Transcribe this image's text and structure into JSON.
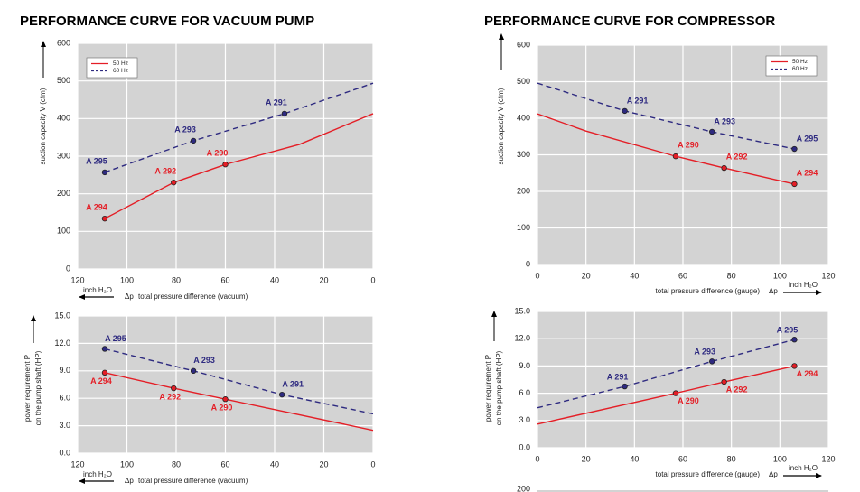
{
  "chart_data": [
    {
      "type": "line",
      "title": "PERFORMANCE CURVE FOR VACUUM PUMP",
      "y_label": [
        "suction capacity V (cfm)"
      ],
      "x_label": "total pressure difference (vacuum)",
      "x_symbol": "Δp",
      "x_unit": "inch H₂O",
      "xlim": [
        120,
        0
      ],
      "xticks": [
        120,
        100,
        80,
        60,
        40,
        20,
        0
      ],
      "ylim": [
        0,
        600
      ],
      "yticks": [
        0,
        100,
        200,
        300,
        400,
        500,
        600
      ],
      "grid": true,
      "legend": "upper left",
      "series": [
        {
          "name": "50 Hz",
          "color": "#e41e26",
          "dash": false,
          "x": [
            109,
            95,
            81,
            60,
            30,
            0
          ],
          "values": [
            134,
            182,
            230,
            278,
            331,
            413
          ],
          "points": [
            {
              "label": "A 294",
              "x": 109,
              "y": 134
            },
            {
              "label": "A 292",
              "x": 81,
              "y": 230
            },
            {
              "label": "A 290",
              "x": 60,
              "y": 278
            }
          ]
        },
        {
          "name": "60 Hz",
          "color": "#2e2a80",
          "dash": true,
          "x": [
            109,
            73,
            36,
            0
          ],
          "values": [
            257,
            341,
            413,
            494
          ],
          "points": [
            {
              "label": "A 295",
              "x": 109,
              "y": 257
            },
            {
              "label": "A 293",
              "x": 73,
              "y": 341
            },
            {
              "label": "A 291",
              "x": 36,
              "y": 413
            }
          ]
        }
      ]
    },
    {
      "type": "line",
      "y_label": [
        "power requirement P",
        "on the pump shaft (HP)"
      ],
      "x_label": "total pressure difference (vacuum)",
      "x_symbol": "Δp",
      "x_unit": "inch H₂O",
      "xlim": [
        120,
        0
      ],
      "xticks": [
        120,
        100,
        80,
        60,
        40,
        20,
        0
      ],
      "ylim": [
        0,
        15
      ],
      "yticks": [
        {
          "value": 0,
          "label": "0.0"
        },
        {
          "value": 3,
          "label": "3.0"
        },
        {
          "value": 6,
          "label": "6.0"
        },
        {
          "value": 9,
          "label": "9.0"
        },
        {
          "value": 12,
          "label": "12.0"
        },
        {
          "value": 15,
          "label": "15.0"
        }
      ],
      "grid": true,
      "series": [
        {
          "color": "#e41e26",
          "dash": false,
          "x": [
            109,
            81,
            60,
            0
          ],
          "values": [
            8.8,
            7.1,
            5.9,
            2.5
          ],
          "points": [
            {
              "label": "A 294",
              "x": 109,
              "y": 8.8
            },
            {
              "label": "A 292",
              "x": 81,
              "y": 7.1
            },
            {
              "label": "A 290",
              "x": 60,
              "y": 5.9
            }
          ]
        },
        {
          "color": "#2e2a80",
          "dash": true,
          "x": [
            109,
            73,
            37,
            0
          ],
          "values": [
            11.4,
            9.0,
            6.4,
            4.3
          ],
          "points": [
            {
              "label": "A 295",
              "x": 109,
              "y": 11.4
            },
            {
              "label": "A 293",
              "x": 73,
              "y": 9.0
            },
            {
              "label": "A 291",
              "x": 37,
              "y": 6.4
            }
          ]
        }
      ]
    },
    {
      "type": "line",
      "title": "PERFORMANCE CURVE FOR COMPRESSOR",
      "y_label": [
        "suction capacity V (cfm)"
      ],
      "x_label": "total pressure difference (gauge)",
      "x_symbol": "Δp",
      "x_unit": "inch H₂O",
      "xlim": [
        0,
        120
      ],
      "xticks": [
        0,
        20,
        40,
        60,
        80,
        100,
        120
      ],
      "ylim": [
        0,
        600
      ],
      "yticks": [
        0,
        100,
        200,
        300,
        400,
        500,
        600
      ],
      "grid": true,
      "legend": "upper right",
      "series": [
        {
          "name": "50 Hz",
          "color": "#e41e26",
          "dash": false,
          "x": [
            0,
            20,
            57,
            77,
            106
          ],
          "values": [
            412,
            365,
            296,
            264,
            220
          ],
          "points": [
            {
              "label": "A 290",
              "x": 57,
              "y": 296
            },
            {
              "label": "A 292",
              "x": 77,
              "y": 264
            },
            {
              "label": "A 294",
              "x": 106,
              "y": 220
            }
          ]
        },
        {
          "name": "60 Hz",
          "color": "#2e2a80",
          "dash": true,
          "x": [
            0,
            36,
            72,
            106
          ],
          "values": [
            496,
            420,
            363,
            316
          ],
          "points": [
            {
              "label": "A 291",
              "x": 36,
              "y": 420
            },
            {
              "label": "A 293",
              "x": 72,
              "y": 363
            },
            {
              "label": "A 295",
              "x": 106,
              "y": 316
            }
          ]
        }
      ]
    },
    {
      "type": "line",
      "y_label": [
        "power requirement P",
        "on the pump shaft (HP)"
      ],
      "x_label": "total pressure difference (gauge)",
      "x_symbol": "Δp",
      "x_unit": "inch H₂O",
      "xlim": [
        0,
        120
      ],
      "xticks": [
        0,
        20,
        40,
        60,
        80,
        100,
        120
      ],
      "ylim": [
        0,
        15
      ],
      "yticks": [
        {
          "value": 0,
          "label": "0.0"
        },
        {
          "value": 3,
          "label": "3.0"
        },
        {
          "value": 6,
          "label": "6.0"
        },
        {
          "value": 9,
          "label": "9.0"
        },
        {
          "value": 12,
          "label": "12.0"
        },
        {
          "value": 15,
          "label": "15.0"
        }
      ],
      "grid": true,
      "series": [
        {
          "color": "#e41e26",
          "dash": false,
          "x": [
            0,
            57,
            77,
            106
          ],
          "values": [
            2.6,
            6.0,
            7.25,
            9.0
          ],
          "points": [
            {
              "label": "A 290",
              "x": 57,
              "y": 6.0
            },
            {
              "label": "A 292",
              "x": 77,
              "y": 7.25
            },
            {
              "label": "A 294",
              "x": 106,
              "y": 9.0
            }
          ]
        },
        {
          "color": "#2e2a80",
          "dash": true,
          "x": [
            0,
            36,
            72,
            106
          ],
          "values": [
            4.4,
            6.75,
            9.5,
            11.9
          ],
          "points": [
            {
              "label": "A 291",
              "x": 36,
              "y": 6.75
            },
            {
              "label": "A 293",
              "x": 72,
              "y": 9.5
            },
            {
              "label": "A 295",
              "x": 106,
              "y": 11.9
            }
          ]
        }
      ]
    },
    {
      "type": "line",
      "yticks": [
        200
      ]
    }
  ]
}
